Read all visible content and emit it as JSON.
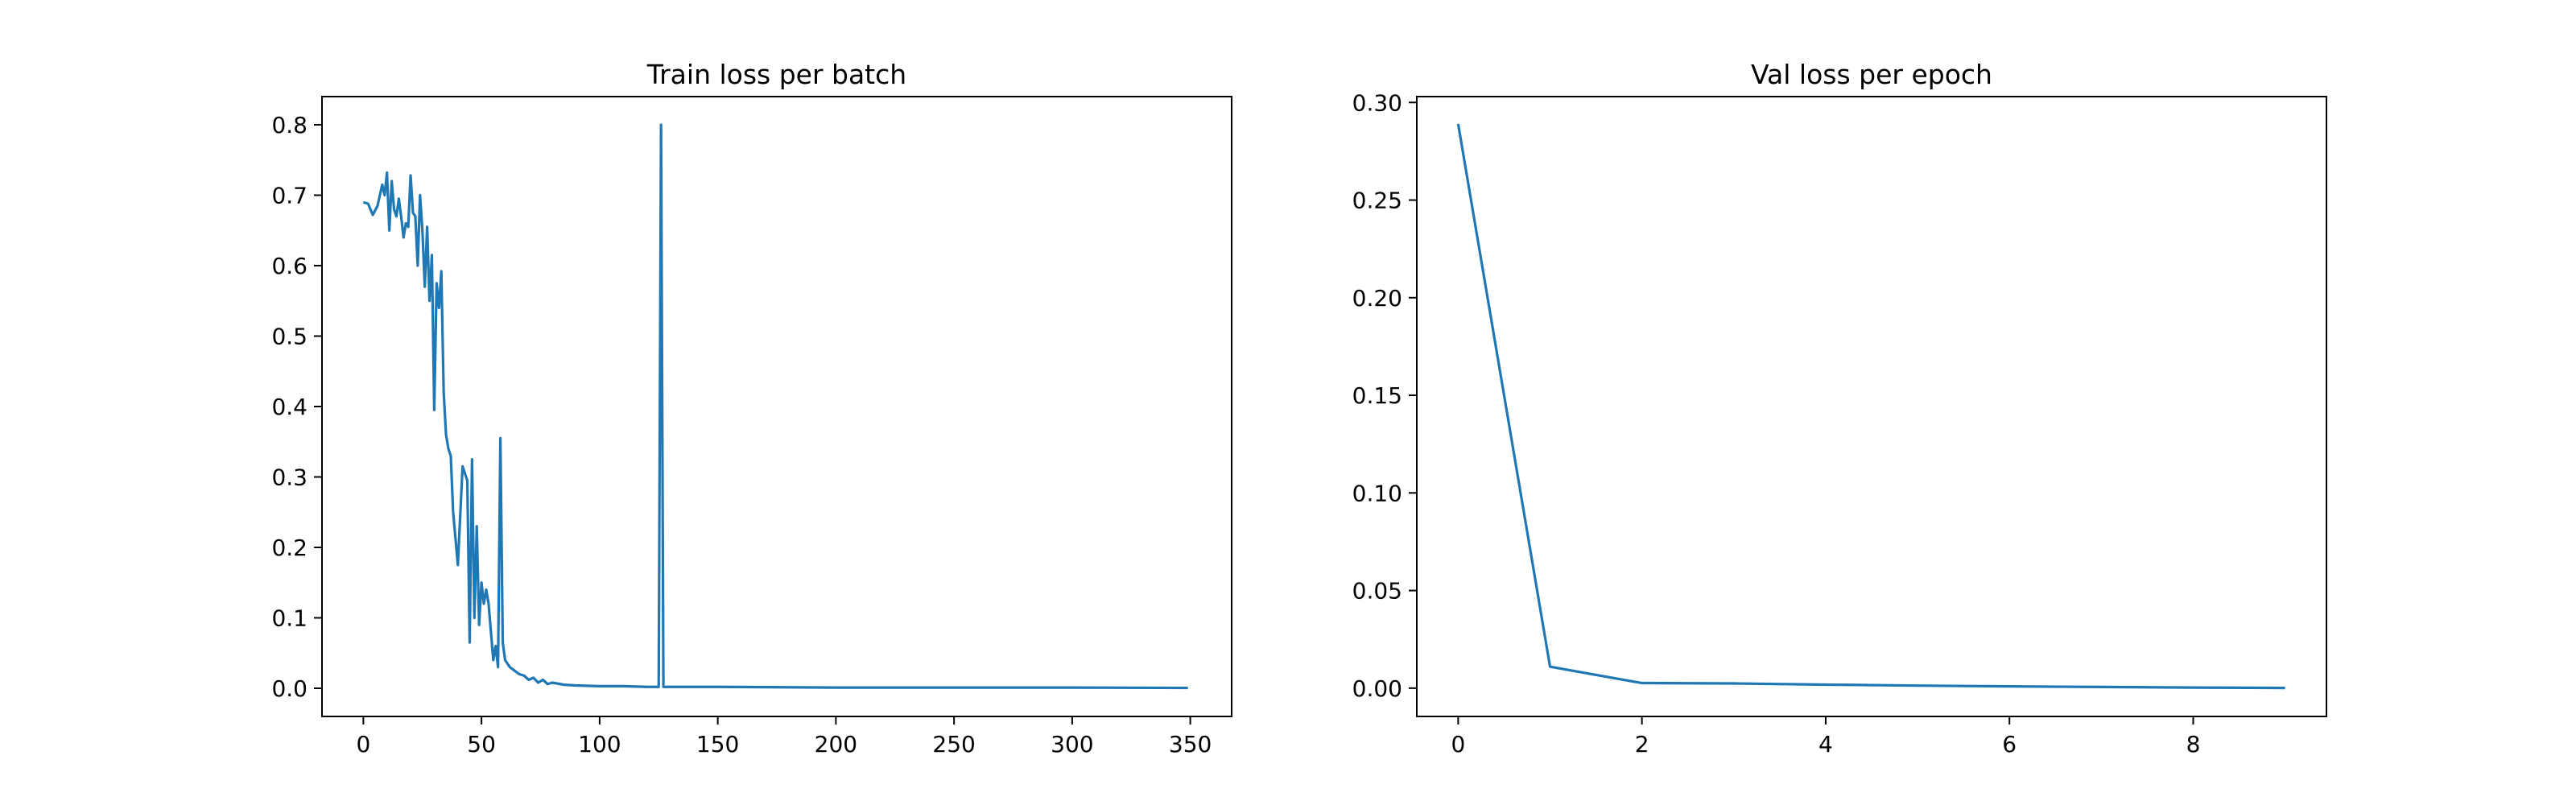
{
  "colors": {
    "series": "#1f77b4",
    "background": "#ffffff",
    "axes": "#000000"
  },
  "chart_data": [
    {
      "type": "line",
      "title": "Train loss per batch",
      "xlabel": "",
      "ylabel": "",
      "xlim": [
        -17.5,
        367.5
      ],
      "ylim": [
        -0.04,
        0.84
      ],
      "xticks": [
        0,
        50,
        100,
        150,
        200,
        250,
        300,
        350
      ],
      "xtick_labels": [
        "0",
        "50",
        "100",
        "150",
        "200",
        "250",
        "300",
        "350"
      ],
      "yticks": [
        0.0,
        0.1,
        0.2,
        0.3,
        0.4,
        0.5,
        0.6,
        0.7,
        0.8
      ],
      "ytick_labels": [
        "0.0",
        "0.1",
        "0.2",
        "0.3",
        "0.4",
        "0.5",
        "0.6",
        "0.7",
        "0.8"
      ],
      "grid": false,
      "series": [
        {
          "x": [
            0,
            2,
            4,
            6,
            8,
            9,
            10,
            11,
            12,
            13,
            14,
            15,
            16,
            17,
            18,
            19,
            20,
            21,
            22,
            23,
            24,
            25,
            26,
            27,
            28,
            29,
            30,
            31,
            32,
            33,
            34,
            35,
            36,
            37,
            38,
            40,
            42,
            44,
            45,
            46,
            47,
            48,
            49,
            50,
            51,
            52,
            53,
            54,
            55,
            56,
            57,
            58,
            59,
            60,
            62,
            64,
            66,
            68,
            70,
            72,
            74,
            76,
            78,
            80,
            85,
            90,
            100,
            110,
            120,
            125,
            126,
            127,
            130,
            150,
            200,
            250,
            300,
            349
          ],
          "y": [
            0.69,
            0.688,
            0.672,
            0.685,
            0.715,
            0.7,
            0.732,
            0.65,
            0.72,
            0.68,
            0.67,
            0.695,
            0.67,
            0.64,
            0.66,
            0.655,
            0.728,
            0.675,
            0.67,
            0.6,
            0.7,
            0.65,
            0.57,
            0.655,
            0.55,
            0.615,
            0.395,
            0.575,
            0.54,
            0.592,
            0.42,
            0.36,
            0.34,
            0.33,
            0.25,
            0.175,
            0.315,
            0.295,
            0.065,
            0.325,
            0.1,
            0.23,
            0.09,
            0.15,
            0.12,
            0.14,
            0.12,
            0.08,
            0.04,
            0.06,
            0.03,
            0.355,
            0.065,
            0.04,
            0.03,
            0.025,
            0.02,
            0.018,
            0.012,
            0.015,
            0.008,
            0.012,
            0.006,
            0.008,
            0.005,
            0.004,
            0.003,
            0.003,
            0.002,
            0.002,
            0.8,
            0.002,
            0.002,
            0.002,
            0.001,
            0.001,
            0.001,
            0.0005
          ]
        }
      ]
    },
    {
      "type": "line",
      "title": "Val loss per epoch",
      "xlabel": "",
      "ylabel": "",
      "xlim": [
        -0.45,
        9.45
      ],
      "ylim": [
        -0.0145,
        0.303
      ],
      "xticks": [
        0,
        2,
        4,
        6,
        8
      ],
      "xtick_labels": [
        "0",
        "2",
        "4",
        "6",
        "8"
      ],
      "yticks": [
        0.0,
        0.05,
        0.1,
        0.15,
        0.2,
        0.25,
        0.3
      ],
      "ytick_labels": [
        "0.00",
        "0.05",
        "0.10",
        "0.15",
        "0.20",
        "0.25",
        "0.30"
      ],
      "grid": false,
      "series": [
        {
          "x": [
            0,
            1,
            2,
            3,
            4,
            5,
            6,
            7,
            8,
            9
          ],
          "y": [
            0.289,
            0.011,
            0.0026,
            0.0024,
            0.0018,
            0.0013,
            0.0009,
            0.0006,
            0.0003,
            0.0001
          ]
        }
      ]
    }
  ]
}
